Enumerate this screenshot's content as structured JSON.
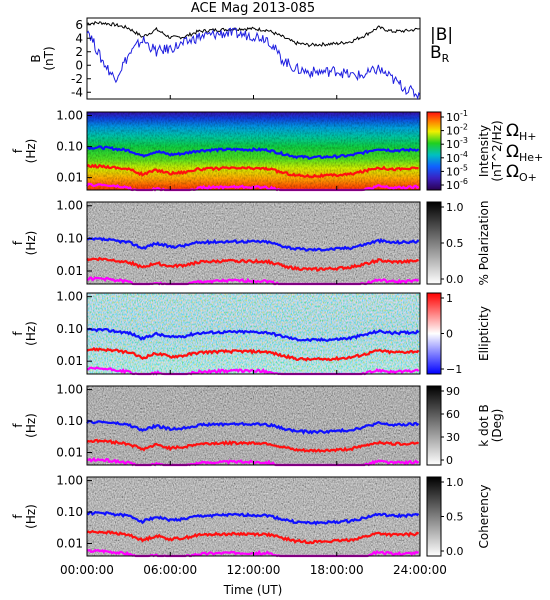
{
  "title": "ACE Mag 2013-085",
  "colors": {
    "total_field": "#000000",
    "radial_field": "#1f1fe0",
    "h_plus": "#1010ff",
    "he_plus": "#ff1010",
    "o_plus": "#ff00ff"
  },
  "chart_data": [
    {
      "type": "line",
      "panel": "magnetic-field",
      "ylabel_line1": "B",
      "ylabel_line2": "(nT)",
      "ylim": [
        -5,
        7
      ],
      "yticks": [
        "6",
        "4",
        "2",
        "0",
        "-2",
        "-4"
      ],
      "ytick_values": [
        6,
        4,
        2,
        0,
        -2,
        -4
      ],
      "xlim": [
        0,
        24
      ],
      "series": [
        {
          "name": "|B|",
          "color": "#000000",
          "x": [
            0,
            1,
            2,
            3,
            4,
            5,
            6,
            7,
            8,
            9,
            10,
            11,
            12,
            13,
            14,
            15,
            16,
            17,
            18,
            19,
            20,
            21,
            22,
            23,
            24
          ],
          "y": [
            6.2,
            6.3,
            6.0,
            5.5,
            4.2,
            5.3,
            4.1,
            4.2,
            5.0,
            5.2,
            5.3,
            5.4,
            5.4,
            5.2,
            4.3,
            3.3,
            3.0,
            3.1,
            3.2,
            3.5,
            4.4,
            5.6,
            5.0,
            5.1,
            5.4
          ]
        },
        {
          "name": "B_R",
          "color": "#1f1fe0",
          "x": [
            0,
            1,
            2,
            3,
            4,
            5,
            6,
            7,
            8,
            9,
            10,
            11,
            12,
            13,
            14,
            15,
            16,
            17,
            18,
            19,
            20,
            21,
            22,
            23,
            24
          ],
          "y": [
            5.5,
            1.0,
            -2.0,
            1.5,
            3.8,
            2.0,
            2.5,
            3.2,
            4.2,
            4.5,
            4.8,
            4.6,
            4.4,
            4.0,
            1.0,
            -0.5,
            -1.0,
            -1.0,
            -0.8,
            -1.5,
            -1.5,
            -0.5,
            -2.0,
            -3.5,
            -4.5
          ]
        }
      ]
    },
    {
      "type": "heatmap",
      "panel": "intensity",
      "colormap": "rainbow",
      "colorbar_label": "Intensity",
      "colorbar_label2": "(nT^2/Hz)",
      "colorbar_ticks": [
        "10",
        "10",
        "10",
        "10",
        "10",
        "10"
      ],
      "colorbar_exponents": [
        "-1",
        "-2",
        "-3",
        "-4",
        "-5",
        "-6"
      ]
    },
    {
      "type": "heatmap",
      "panel": "polarization",
      "colormap": "gray",
      "colorbar_label": "% Polarization",
      "colorbar_ticks": [
        "1.0",
        "0.5",
        "0.0"
      ]
    },
    {
      "type": "heatmap",
      "panel": "ellipticity",
      "colormap": "blue-white-red",
      "colorbar_label": "Ellipticity",
      "colorbar_ticks": [
        "1",
        "0",
        "−1"
      ]
    },
    {
      "type": "heatmap",
      "panel": "k-dot-b",
      "colormap": "gray",
      "colorbar_label": "k dot B",
      "colorbar_label2": "(Deg)",
      "colorbar_ticks": [
        "90",
        "60",
        "30",
        "0"
      ]
    },
    {
      "type": "heatmap",
      "panel": "coherency",
      "colormap": "gray",
      "colorbar_label": "Coherency",
      "colorbar_ticks": [
        "1.0",
        "0.5",
        "0.0"
      ]
    }
  ],
  "freq_axis": {
    "ylabel_line1": "f",
    "ylabel_line2": "(Hz)",
    "ylim": [
      0.004,
      1.3
    ],
    "yticks": [
      "1.00",
      "0.10",
      "0.01"
    ],
    "ytick_values": [
      1.0,
      0.1,
      0.01
    ]
  },
  "gyrofrequencies": {
    "x": [
      0,
      1,
      2,
      3,
      4,
      5,
      6,
      7,
      8,
      9,
      10,
      11,
      12,
      13,
      14,
      15,
      16,
      17,
      18,
      19,
      20,
      21,
      22,
      23,
      24
    ],
    "h_plus_hz": [
      0.092,
      0.094,
      0.085,
      0.075,
      0.05,
      0.07,
      0.055,
      0.06,
      0.074,
      0.078,
      0.08,
      0.081,
      0.08,
      0.078,
      0.06,
      0.048,
      0.045,
      0.046,
      0.048,
      0.052,
      0.065,
      0.085,
      0.075,
      0.077,
      0.082
    ]
  },
  "legend": {
    "b_total": "|B|",
    "b_radial_main": "B",
    "b_radial_sub": "R",
    "omega": "Ω",
    "h_sub": "H+",
    "he_sub": "He+",
    "o_sub": "O+"
  },
  "x_axis": {
    "ticks": [
      "00:00:00",
      "06:00:00",
      "12:00:00",
      "18:00:00",
      "24:00:00"
    ],
    "tick_values": [
      0,
      6,
      12,
      18,
      24
    ],
    "label": "Time (UT)"
  }
}
